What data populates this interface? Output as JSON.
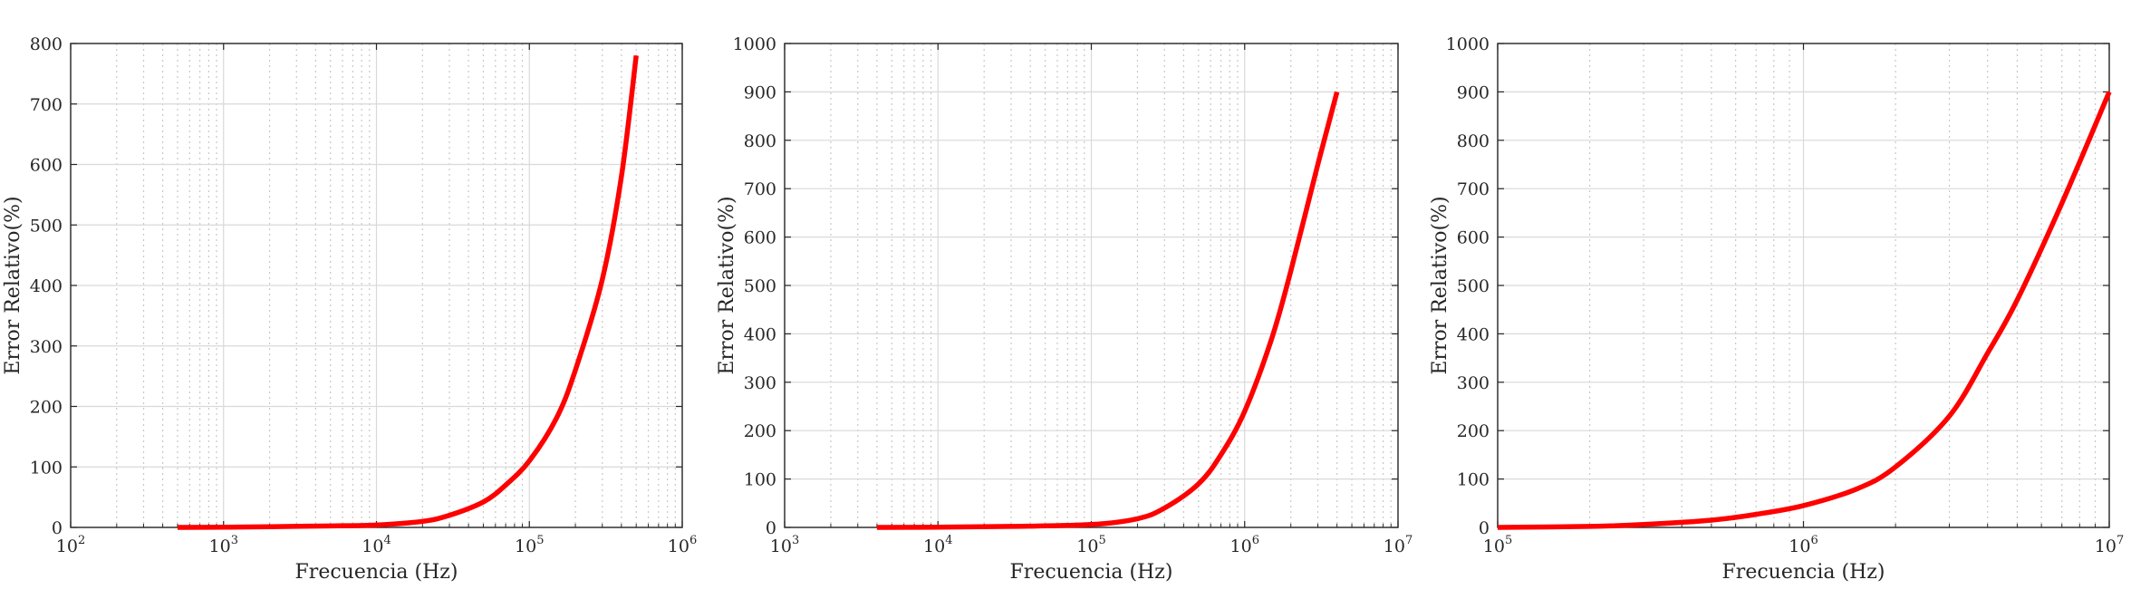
{
  "colors": {
    "curve": "#ff0000",
    "axis": "#262626",
    "grid_major": "#d9d9d9",
    "grid_minor": "#c8c8c8"
  },
  "chart_data": [
    {
      "type": "line",
      "xscale": "log",
      "xlim": [
        100,
        1000000
      ],
      "ylim": [
        0,
        800
      ],
      "xlabel": "Frecuencia (Hz)",
      "ylabel": "Error Relativo(%)",
      "grid": true,
      "xticks": [
        {
          "value": 100,
          "base": "10",
          "exp": "2"
        },
        {
          "value": 1000,
          "base": "10",
          "exp": "3"
        },
        {
          "value": 10000,
          "base": "10",
          "exp": "4"
        },
        {
          "value": 100000,
          "base": "10",
          "exp": "5"
        },
        {
          "value": 1000000,
          "base": "10",
          "exp": "6"
        }
      ],
      "yticks": [
        "0",
        "100",
        "200",
        "300",
        "400",
        "500",
        "600",
        "700",
        "800"
      ],
      "series": [
        {
          "x": [
            500,
            1000,
            2000,
            5000,
            10000,
            20000,
            30000,
            50000,
            70000,
            100000,
            150000,
            200000,
            300000,
            400000,
            500000
          ],
          "y": [
            0,
            0.3,
            1.2,
            2.5,
            4,
            10,
            20,
            42,
            70,
            110,
            180,
            260,
            410,
            580,
            780
          ]
        }
      ]
    },
    {
      "type": "line",
      "xscale": "log",
      "xlim": [
        1000,
        10000000
      ],
      "ylim": [
        0,
        1000
      ],
      "xlabel": "Frecuencia (Hz)",
      "ylabel": "Error Relativo(%)",
      "grid": true,
      "xticks": [
        {
          "value": 1000,
          "base": "10",
          "exp": "3"
        },
        {
          "value": 10000,
          "base": "10",
          "exp": "4"
        },
        {
          "value": 100000,
          "base": "10",
          "exp": "5"
        },
        {
          "value": 1000000,
          "base": "10",
          "exp": "6"
        },
        {
          "value": 10000000,
          "base": "10",
          "exp": "7"
        }
      ],
      "yticks": [
        "0",
        "100",
        "200",
        "300",
        "400",
        "500",
        "600",
        "700",
        "800",
        "900",
        "1000"
      ],
      "series": [
        {
          "x": [
            4000,
            10000,
            30000,
            100000,
            200000,
            300000,
            500000,
            700000,
            1000000,
            1500000,
            2000000,
            3000000,
            4000000
          ],
          "y": [
            0,
            0.5,
            2,
            6,
            18,
            40,
            90,
            150,
            240,
            390,
            530,
            750,
            900
          ]
        }
      ]
    },
    {
      "type": "line",
      "xscale": "log",
      "xlim": [
        100000,
        10000000
      ],
      "ylim": [
        0,
        1000
      ],
      "xlabel": "Frecuencia (Hz)",
      "ylabel": "Error Relativo(%)",
      "grid": true,
      "xticks": [
        {
          "value": 100000,
          "base": "10",
          "exp": "5"
        },
        {
          "value": 1000000,
          "base": "10",
          "exp": "6"
        },
        {
          "value": 10000000,
          "base": "10",
          "exp": "7"
        }
      ],
      "yticks": [
        "0",
        "100",
        "200",
        "300",
        "400",
        "500",
        "600",
        "700",
        "800",
        "900",
        "1000"
      ],
      "series": [
        {
          "x": [
            100000,
            200000,
            300000,
            500000,
            700000,
            1000000,
            1500000,
            2000000,
            3000000,
            4000000,
            5000000,
            7000000,
            10000000
          ],
          "y": [
            0,
            2,
            6,
            15,
            27,
            45,
            80,
            125,
            230,
            360,
            470,
            670,
            900
          ]
        }
      ]
    }
  ]
}
